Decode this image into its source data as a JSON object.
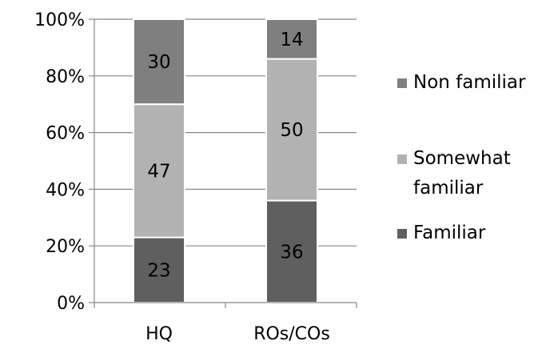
{
  "chart_data": {
    "type": "bar",
    "stacked": true,
    "percent": true,
    "categories": [
      "HQ",
      "ROs/COs"
    ],
    "series": [
      {
        "name": "Familiar",
        "values": [
          23,
          36
        ],
        "color": "#5f5f5f"
      },
      {
        "name": "Somewhat familiar",
        "legend_lines": [
          "Somewhat",
          "familiar"
        ],
        "values": [
          47,
          50
        ],
        "color": "#b2b2b2"
      },
      {
        "name": "Non familiar",
        "values": [
          30,
          14
        ],
        "color": "#7f7f7f"
      }
    ],
    "y_ticks": [
      "0%",
      "20%",
      "40%",
      "60%",
      "80%",
      "100%"
    ],
    "ylim": [
      0,
      100
    ],
    "grid": true,
    "legend_position": "right",
    "legend_order": [
      "Non familiar",
      "Somewhat familiar",
      "Familiar"
    ]
  }
}
